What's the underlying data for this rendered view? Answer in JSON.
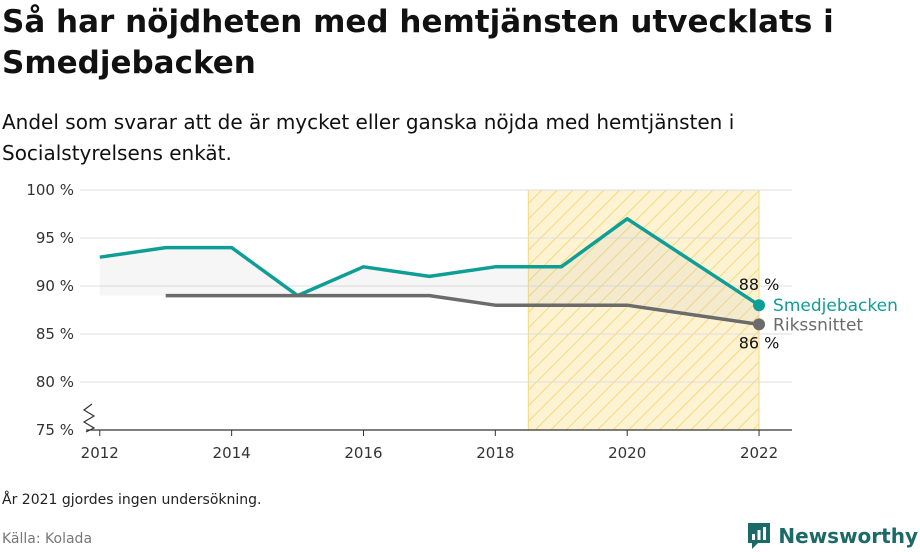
{
  "header": {
    "title": "Så har nöjdheten med hemtjänsten utvecklats i Smedjebacken",
    "subtitle": "Andel som svarar att de är mycket eller ganska nöjda med hemtjänsten i Socialstyrelsens enkät."
  },
  "footer": {
    "note": "År 2021 gjordes ingen undersökning.",
    "source": "Källa: Kolada",
    "brand": "Newsworthy"
  },
  "colors": {
    "smedjebacken": "#0f9e96",
    "riksnittet": "#6b6b6b",
    "highlight_fill": "#fdf3d3",
    "highlight_stripe": "#f5d97c",
    "brand": "#1b6a68"
  },
  "chart_data": {
    "type": "line",
    "x": [
      2012,
      2013,
      2014,
      2015,
      2016,
      2017,
      2018,
      2019,
      2020,
      2022
    ],
    "series": [
      {
        "name": "Smedjebacken",
        "values": [
          93,
          94,
          94,
          89,
          92,
          91,
          92,
          92,
          97,
          88
        ],
        "color": "#0f9e96"
      },
      {
        "name": "Rikssnittet",
        "values": [
          null,
          89,
          89,
          89,
          89,
          89,
          88,
          88,
          88,
          86
        ],
        "color": "#6b6b6b"
      }
    ],
    "end_labels": [
      "88 %",
      "86 %"
    ],
    "xticks": [
      "2012",
      "2014",
      "2016",
      "2018",
      "2020",
      "2022"
    ],
    "xtick_values": [
      2012,
      2014,
      2016,
      2018,
      2020,
      2022
    ],
    "yticks": [
      "75 %",
      "80 %",
      "85 %",
      "90 %",
      "95 %",
      "100 %"
    ],
    "ytick_values": [
      75,
      80,
      85,
      90,
      95,
      100
    ],
    "ylim": [
      75,
      100
    ],
    "xlim": [
      2011.7,
      2022.5
    ],
    "highlight_range": [
      2018.5,
      2022
    ],
    "axis_break": true,
    "grid": true
  }
}
